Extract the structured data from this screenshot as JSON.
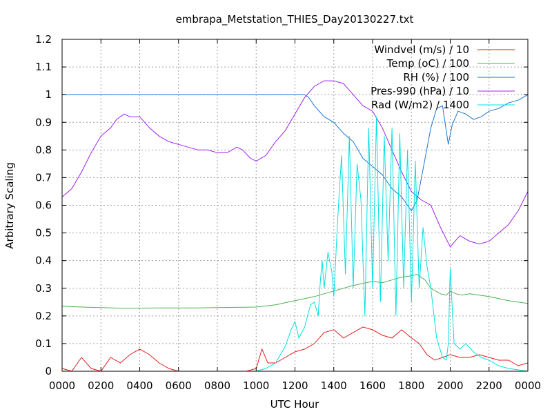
{
  "chart_data": {
    "type": "line",
    "title": "embrapa_Metstation_THIES_Day20130227.txt",
    "xlabel": "UTC Hour",
    "ylabel": "Arbitrary Scaling",
    "xlim": [
      0,
      24
    ],
    "ylim": [
      0,
      1.2
    ],
    "grid": true,
    "legend_position": "top-right",
    "x_ticks": [
      {
        "value": 0,
        "label": "0000"
      },
      {
        "value": 2,
        "label": "0200"
      },
      {
        "value": 4,
        "label": "0400"
      },
      {
        "value": 6,
        "label": "0600"
      },
      {
        "value": 8,
        "label": "0800"
      },
      {
        "value": 10,
        "label": "1000"
      },
      {
        "value": 12,
        "label": "1200"
      },
      {
        "value": 14,
        "label": "1400"
      },
      {
        "value": 16,
        "label": "1600"
      },
      {
        "value": 18,
        "label": "1800"
      },
      {
        "value": 20,
        "label": "2000"
      },
      {
        "value": 22,
        "label": "2200"
      },
      {
        "value": 24,
        "label": "0000"
      }
    ],
    "y_ticks": [
      {
        "value": 0,
        "label": "0"
      },
      {
        "value": 0.1,
        "label": "0.1"
      },
      {
        "value": 0.2,
        "label": "0.2"
      },
      {
        "value": 0.3,
        "label": "0.3"
      },
      {
        "value": 0.4,
        "label": "0.4"
      },
      {
        "value": 0.5,
        "label": "0.5"
      },
      {
        "value": 0.6,
        "label": "0.6"
      },
      {
        "value": 0.7,
        "label": "0.7"
      },
      {
        "value": 0.8,
        "label": "0.8"
      },
      {
        "value": 0.9,
        "label": "0.9"
      },
      {
        "value": 1.0,
        "label": "1"
      },
      {
        "value": 1.1,
        "label": "1.1"
      },
      {
        "value": 1.2,
        "label": "1.2"
      }
    ],
    "series": [
      {
        "name": "Windvel (m/s) / 10",
        "color": "#e41a1c",
        "x": [
          0,
          0.5,
          1.0,
          1.5,
          2.0,
          2.5,
          3.0,
          3.5,
          4.0,
          4.5,
          5.0,
          5.5,
          6.0,
          6.5,
          7.0,
          7.5,
          8.0,
          8.5,
          9.0,
          9.5,
          10.0,
          10.3,
          10.6,
          11.0,
          11.5,
          12.0,
          12.5,
          13.0,
          13.5,
          14.0,
          14.5,
          15.0,
          15.5,
          16.0,
          16.5,
          17.0,
          17.5,
          18.0,
          18.4,
          18.8,
          19.2,
          19.6,
          20.0,
          20.5,
          21.0,
          21.5,
          22.0,
          22.5,
          23.0,
          23.5,
          24.0
        ],
        "y": [
          0.01,
          0.0,
          0.05,
          0.01,
          0.0,
          0.05,
          0.03,
          0.06,
          0.08,
          0.06,
          0.03,
          0.01,
          0.0,
          0.0,
          0.0,
          0.0,
          0.0,
          0.0,
          0.0,
          0.0,
          0.01,
          0.08,
          0.03,
          0.03,
          0.05,
          0.07,
          0.08,
          0.1,
          0.14,
          0.15,
          0.12,
          0.14,
          0.16,
          0.15,
          0.13,
          0.12,
          0.15,
          0.12,
          0.1,
          0.06,
          0.04,
          0.05,
          0.06,
          0.05,
          0.05,
          0.06,
          0.05,
          0.04,
          0.04,
          0.02,
          0.03
        ]
      },
      {
        "name": "Temp (oC) / 100",
        "color": "#4daf4a",
        "x": [
          0,
          1,
          2,
          3,
          4,
          5,
          6,
          7,
          8,
          9,
          10,
          11,
          12,
          13,
          14,
          15,
          16,
          16.5,
          17,
          17.5,
          18,
          18.3,
          18.7,
          19.0,
          19.5,
          19.8,
          20.0,
          20.3,
          20.6,
          21,
          22,
          23,
          24
        ],
        "y": [
          0.235,
          0.232,
          0.23,
          0.228,
          0.228,
          0.229,
          0.229,
          0.229,
          0.23,
          0.231,
          0.232,
          0.24,
          0.255,
          0.27,
          0.29,
          0.31,
          0.325,
          0.32,
          0.33,
          0.34,
          0.345,
          0.35,
          0.33,
          0.3,
          0.28,
          0.275,
          0.29,
          0.28,
          0.275,
          0.28,
          0.27,
          0.255,
          0.245
        ]
      },
      {
        "name": "RH (%) / 100",
        "color": "#1a74d2",
        "x": [
          0,
          2,
          4,
          6,
          8,
          10,
          12,
          12.5,
          12.7,
          13.0,
          13.5,
          14.0,
          14.5,
          15.0,
          15.5,
          16.0,
          16.5,
          17.0,
          17.5,
          17.8,
          18.0,
          18.3,
          18.6,
          19.0,
          19.3,
          19.6,
          19.9,
          20.1,
          20.4,
          20.8,
          21.2,
          21.6,
          22.0,
          22.5,
          23.0,
          23.5,
          24.0
        ],
        "y": [
          1.0,
          1.0,
          1.0,
          1.0,
          1.0,
          1.0,
          1.0,
          1.0,
          0.99,
          0.96,
          0.92,
          0.9,
          0.86,
          0.83,
          0.77,
          0.74,
          0.71,
          0.66,
          0.63,
          0.6,
          0.58,
          0.62,
          0.73,
          0.88,
          0.95,
          0.96,
          0.82,
          0.89,
          0.94,
          0.93,
          0.91,
          0.92,
          0.94,
          0.95,
          0.97,
          0.98,
          1.0
        ]
      },
      {
        "name": "Pres-990 (hPa) / 10",
        "color": "#a020f0",
        "x": [
          0,
          0.5,
          1.0,
          1.5,
          2.0,
          2.5,
          2.8,
          3.2,
          3.5,
          4.0,
          4.5,
          5.0,
          5.5,
          6.0,
          6.5,
          7.0,
          7.5,
          8.0,
          8.5,
          9.0,
          9.3,
          9.7,
          10.0,
          10.5,
          11.0,
          11.5,
          12.0,
          12.5,
          13.0,
          13.5,
          14.0,
          14.5,
          15.0,
          15.5,
          16.0,
          16.5,
          17.0,
          17.5,
          18.0,
          18.5,
          19.0,
          19.5,
          20.0,
          20.5,
          21.0,
          21.5,
          22.0,
          22.5,
          23.0,
          23.5,
          24.0
        ],
        "y": [
          0.63,
          0.66,
          0.72,
          0.79,
          0.85,
          0.88,
          0.91,
          0.93,
          0.92,
          0.92,
          0.88,
          0.85,
          0.83,
          0.82,
          0.81,
          0.8,
          0.8,
          0.79,
          0.79,
          0.81,
          0.8,
          0.77,
          0.76,
          0.78,
          0.83,
          0.87,
          0.93,
          0.99,
          1.03,
          1.05,
          1.05,
          1.04,
          1.0,
          0.96,
          0.94,
          0.88,
          0.8,
          0.72,
          0.65,
          0.62,
          0.6,
          0.52,
          0.45,
          0.49,
          0.47,
          0.46,
          0.47,
          0.5,
          0.53,
          0.58,
          0.65
        ]
      },
      {
        "name": "Rad (W/m2) / 1400",
        "color": "#00e0e0",
        "x": [
          0,
          2,
          4,
          6,
          8,
          10,
          10.5,
          11.0,
          11.5,
          11.8,
          12.0,
          12.2,
          12.5,
          12.8,
          13.0,
          13.2,
          13.3,
          13.4,
          13.5,
          13.7,
          13.9,
          14.0,
          14.2,
          14.4,
          14.6,
          14.8,
          15.0,
          15.2,
          15.4,
          15.6,
          15.8,
          16.0,
          16.2,
          16.4,
          16.6,
          16.8,
          17.0,
          17.2,
          17.4,
          17.6,
          17.8,
          18.0,
          18.2,
          18.4,
          18.6,
          18.8,
          19.0,
          19.3,
          19.6,
          19.8,
          19.9,
          20.0,
          20.2,
          20.5,
          20.8,
          21.2,
          21.6,
          22.0,
          22.5,
          23.0,
          24.0
        ],
        "y": [
          0.0,
          0.0,
          0.0,
          0.0,
          0.0,
          0.0,
          0.01,
          0.03,
          0.09,
          0.15,
          0.18,
          0.12,
          0.16,
          0.24,
          0.25,
          0.2,
          0.32,
          0.4,
          0.3,
          0.43,
          0.36,
          0.27,
          0.55,
          0.78,
          0.35,
          0.85,
          0.3,
          0.75,
          0.62,
          0.2,
          0.88,
          0.3,
          0.92,
          0.25,
          0.85,
          0.4,
          0.88,
          0.2,
          0.86,
          0.3,
          0.8,
          0.25,
          0.76,
          0.3,
          0.52,
          0.38,
          0.3,
          0.12,
          0.05,
          0.04,
          0.1,
          0.37,
          0.1,
          0.08,
          0.1,
          0.07,
          0.05,
          0.04,
          0.02,
          0.01,
          0.0
        ]
      }
    ]
  }
}
